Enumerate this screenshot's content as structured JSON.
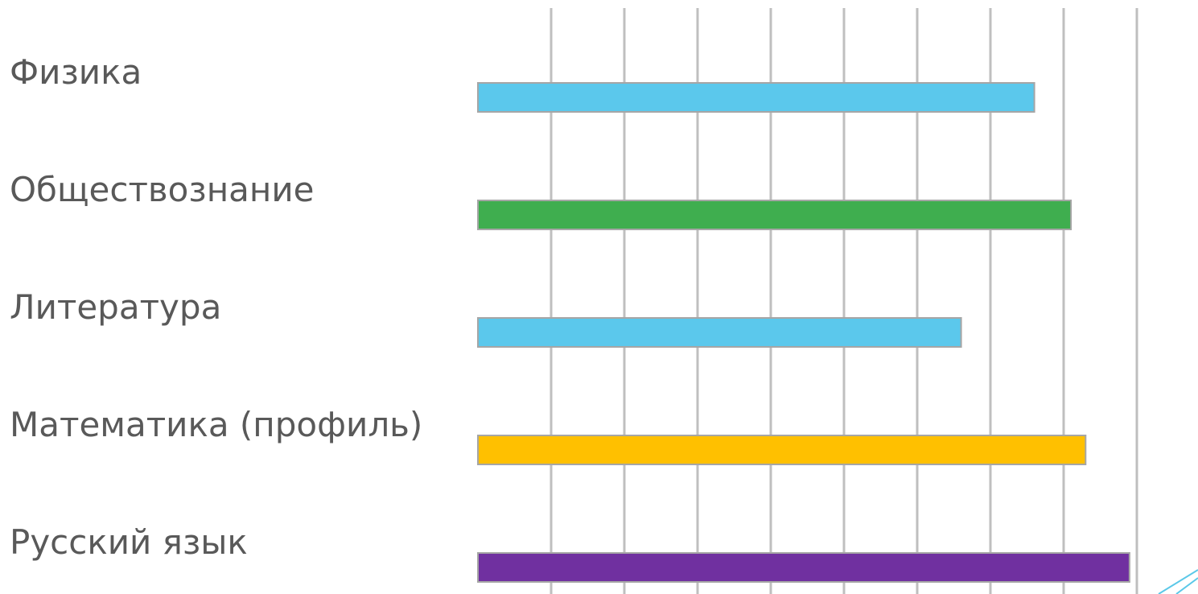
{
  "chart_data": {
    "type": "bar",
    "orientation": "horizontal",
    "categories": [
      "Физика",
      "Обществознание",
      "Литература",
      "Математика (профиль)",
      "Русский язык"
    ],
    "values": [
      76,
      81,
      66,
      83,
      89
    ],
    "colors": [
      "#5bc8ec",
      "#3fae4f",
      "#5bc8ec",
      "#ffc000",
      "#7030a0"
    ],
    "xlim": [
      0,
      90
    ],
    "grid_step": 10,
    "grid": true,
    "legend": "none",
    "title": "",
    "xlabel": "",
    "ylabel": ""
  },
  "decoration": {
    "corner_icon": "triangle-corner-icon"
  }
}
